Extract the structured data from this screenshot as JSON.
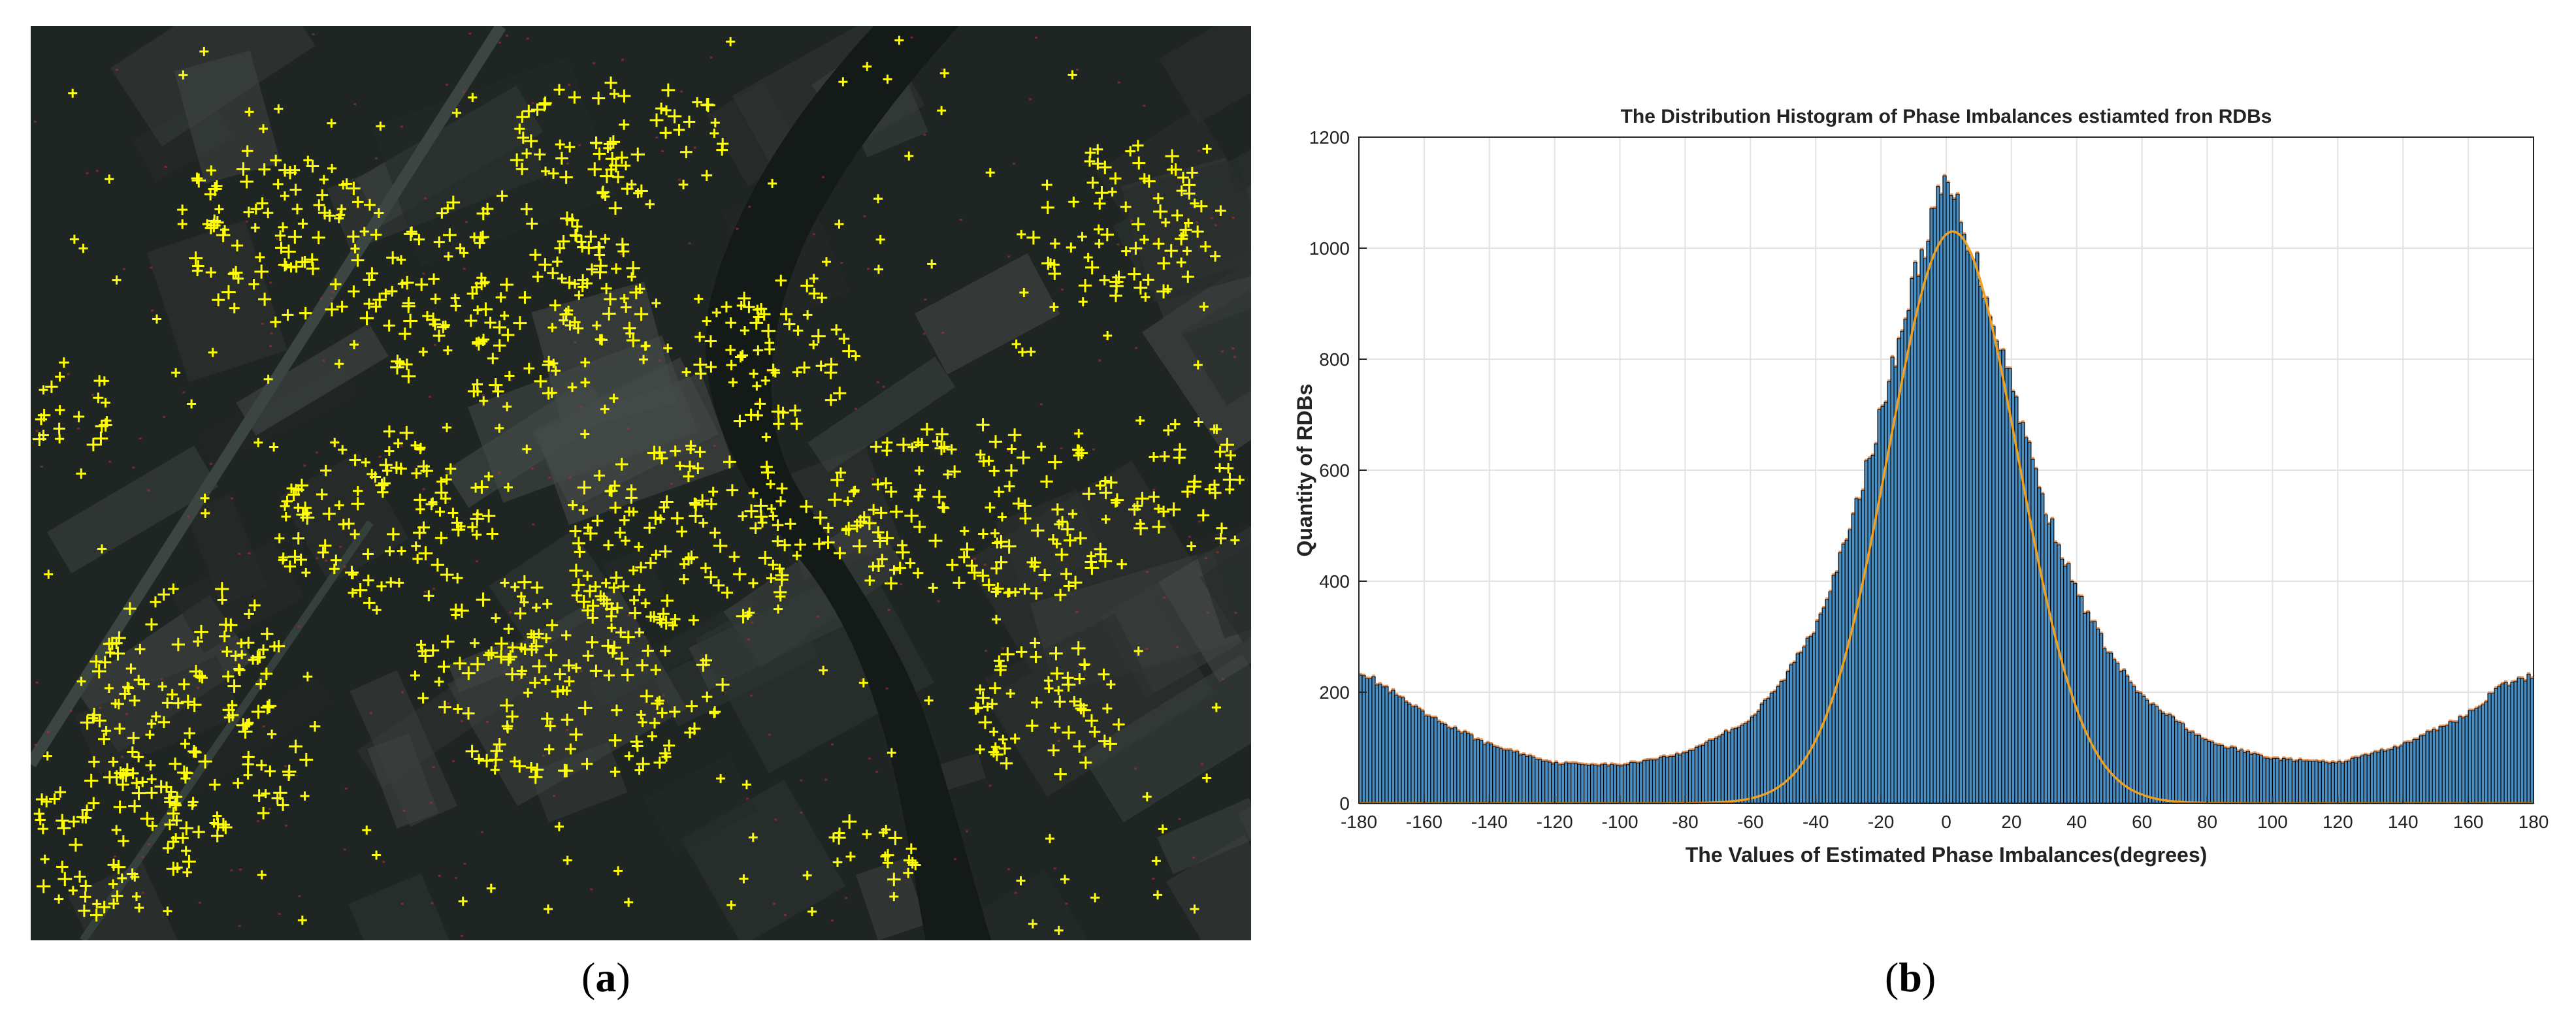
{
  "panel_a": {
    "caption_open": "(",
    "caption_letter": "a",
    "caption_close": ")",
    "marker_color": "#ffff00",
    "background_color": "#1f2523"
  },
  "panel_b": {
    "caption_open": "(",
    "caption_letter": "b",
    "caption_close": ")"
  },
  "chart_data": {
    "type": "bar",
    "title": "The Distribution Histogram of Phase Imbalances estiamted fron RDBs",
    "xlabel": "The Values of Estimated Phase Imbalances(degrees)",
    "ylabel": "Quantity of RDBs",
    "xlim": [
      -180,
      180
    ],
    "ylim": [
      0,
      1200
    ],
    "xticks": [
      -180,
      -160,
      -140,
      -120,
      -100,
      -80,
      -60,
      -40,
      -20,
      0,
      20,
      40,
      60,
      80,
      100,
      120,
      140,
      160,
      180
    ],
    "yticks": [
      0,
      200,
      400,
      600,
      800,
      1000,
      1200
    ],
    "grid": true,
    "bar_color": "#4a8fc4",
    "bar_edge_color": "#000000",
    "fit_color": "#f0a020",
    "bin_width_deg": 1,
    "histogram": {
      "x": [
        -180,
        -160,
        -140,
        -120,
        -100,
        -80,
        -60,
        -50,
        -40,
        -30,
        -20,
        -10,
        -5,
        0,
        5,
        10,
        20,
        30,
        40,
        50,
        60,
        80,
        100,
        120,
        140,
        160,
        170,
        180
      ],
      "y": [
        240,
        160,
        105,
        72,
        68,
        90,
        150,
        220,
        320,
        480,
        700,
        940,
        1040,
        1120,
        1050,
        960,
        760,
        540,
        380,
        270,
        190,
        110,
        80,
        72,
        105,
        160,
        210,
        230
      ]
    },
    "gaussian_fit": {
      "peak": 1030,
      "mean": 2,
      "sigma": 20
    }
  }
}
